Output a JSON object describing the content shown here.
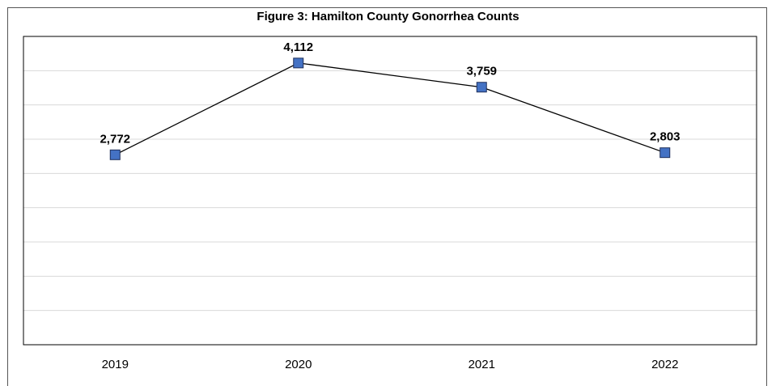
{
  "chart_data": {
    "type": "line",
    "title": "Figure 3: Hamilton County Gonorrhea Counts",
    "categories": [
      "2019",
      "2020",
      "2021",
      "2022"
    ],
    "series": [
      {
        "values": [
          2772,
          4112,
          3759,
          2803
        ],
        "data_labels": [
          "2,772",
          "4,112",
          "3,759",
          "2,803"
        ]
      }
    ],
    "xlabel": "",
    "ylabel": "",
    "ylim": [
      0,
      4500
    ],
    "grid": true,
    "colors": {
      "line": "#000000",
      "marker_fill": "#4472C4",
      "marker_stroke": "#1F2F5A",
      "grid": "#D9D9D9",
      "border": "#000000"
    }
  }
}
